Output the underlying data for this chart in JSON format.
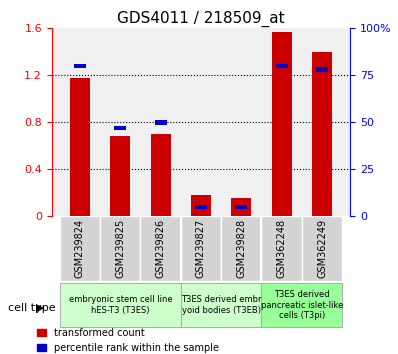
{
  "title": "GDS4011 / 218509_at",
  "samples": [
    "GSM239824",
    "GSM239825",
    "GSM239826",
    "GSM239827",
    "GSM239828",
    "GSM362248",
    "GSM362249"
  ],
  "transformed_count": [
    1.18,
    0.68,
    0.7,
    0.18,
    0.16,
    1.57,
    1.4
  ],
  "percentile_rank": [
    0.8,
    0.47,
    0.5,
    0.05,
    0.05,
    0.8,
    0.78
  ],
  "bar_color_red": "#cc0000",
  "bar_color_blue": "#0000cc",
  "ylim_left": [
    0,
    1.6
  ],
  "ylim_right": [
    0,
    1.0
  ],
  "yticks_left": [
    0,
    0.4,
    0.8,
    1.2,
    1.6
  ],
  "ytick_labels_left": [
    "0",
    "0.4",
    "0.8",
    "1.2",
    "1.6"
  ],
  "ytick_labels_right": [
    "0",
    "25",
    "50",
    "75",
    "100%"
  ],
  "cell_type_groups": [
    {
      "label": "embryonic stem cell line\nhES-T3 (T3ES)",
      "start": 0,
      "end": 3,
      "color": "#ccffcc"
    },
    {
      "label": "T3ES derived embr\nyoid bodies (T3EB)",
      "start": 3,
      "end": 5,
      "color": "#ccffcc"
    },
    {
      "label": "T3ES derived\npancreatic islet-like\ncells (T3pi)",
      "start": 5,
      "end": 7,
      "color": "#99ff99"
    }
  ],
  "legend_red_label": "transformed count",
  "legend_blue_label": "percentile rank within the sample",
  "cell_type_label": "cell type",
  "bar_width": 0.5,
  "blue_bar_width": 0.5,
  "blue_bar_height": 0.04,
  "background_color": "#ffffff",
  "plot_background": "#f0f0f0"
}
